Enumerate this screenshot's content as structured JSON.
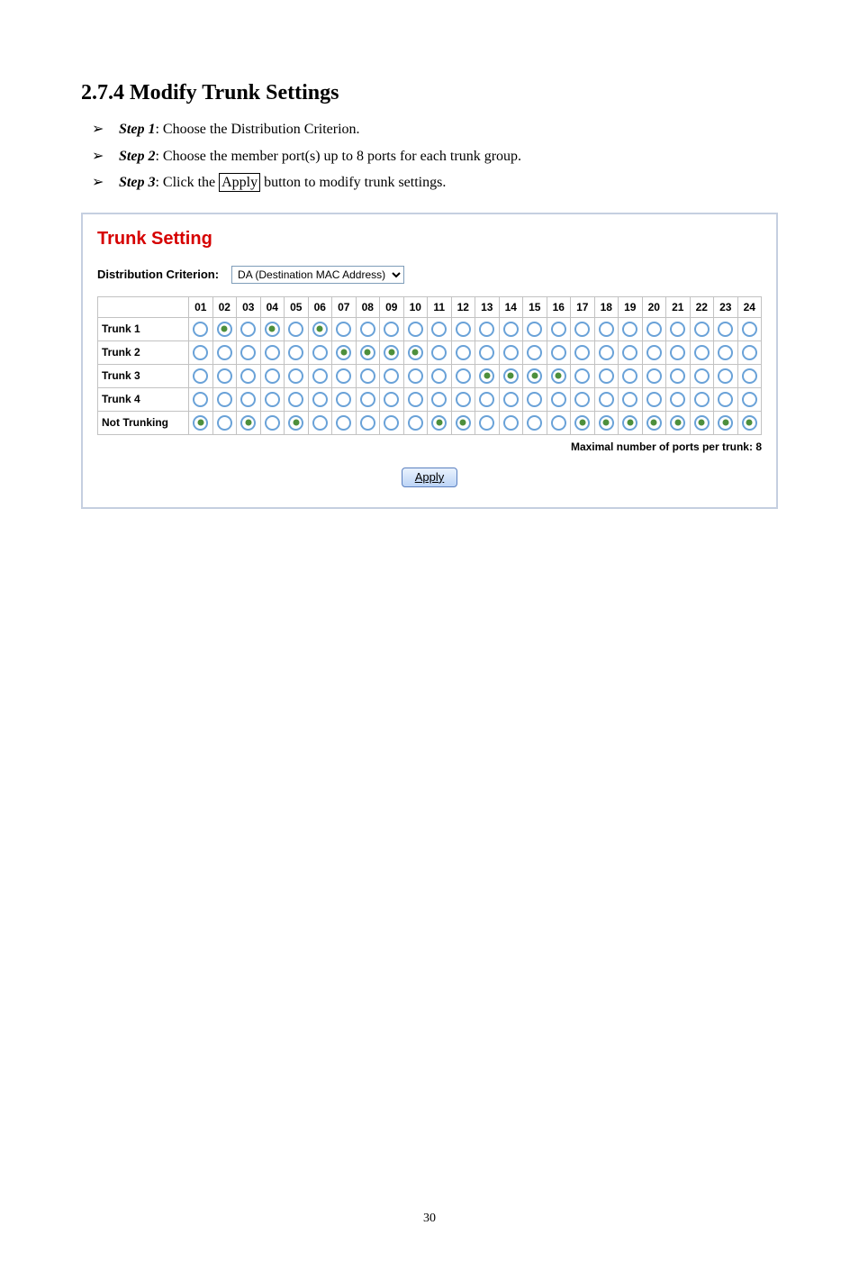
{
  "heading": "2.7.4   Modify Trunk Settings",
  "steps": [
    {
      "label": "Step 1",
      "text": ": Choose the Distribution Criterion."
    },
    {
      "label": "Step 2",
      "text": ": Choose the member port(s) up to 8 ports for each trunk group."
    },
    {
      "label": "Step 3",
      "text_before": ": Click the ",
      "boxed": "Apply",
      "text_after": " button to modify trunk settings."
    }
  ],
  "panel": {
    "title": "Trunk Setting",
    "criterion_label": "Distribution Criterion:",
    "criterion_value": "DA (Destination MAC Address)",
    "port_headers": [
      "01",
      "02",
      "03",
      "04",
      "05",
      "06",
      "07",
      "08",
      "09",
      "10",
      "11",
      "12",
      "13",
      "14",
      "15",
      "16",
      "17",
      "18",
      "19",
      "20",
      "21",
      "22",
      "23",
      "24"
    ],
    "rows": [
      {
        "label": "Trunk 1",
        "selected": [
          2,
          4,
          6
        ]
      },
      {
        "label": "Trunk 2",
        "selected": [
          7,
          8,
          9,
          10
        ]
      },
      {
        "label": "Trunk 3",
        "selected": [
          13,
          14,
          15,
          16
        ]
      },
      {
        "label": "Trunk 4",
        "selected": []
      },
      {
        "label": "Not Trunking",
        "selected": [
          1,
          3,
          5,
          11,
          12,
          17,
          18,
          19,
          20,
          21,
          22,
          23,
          24
        ]
      }
    ],
    "max_note": "Maximal number of ports per trunk: 8",
    "apply_label": "Apply"
  },
  "page_number": "30"
}
